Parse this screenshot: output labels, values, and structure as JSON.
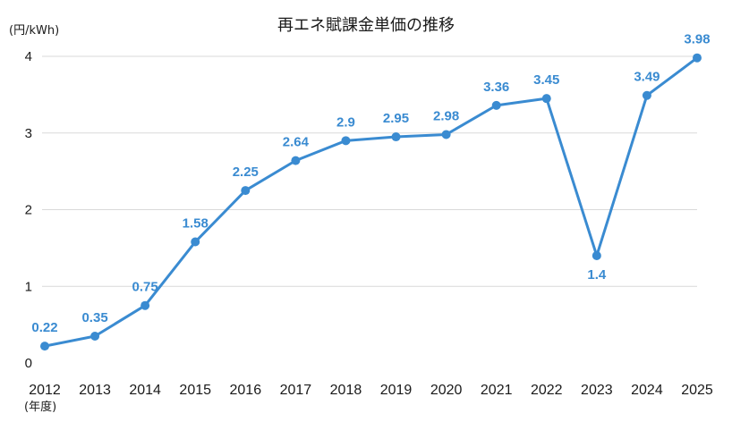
{
  "chart_data": {
    "type": "line",
    "title": "再エネ賦課金単価の推移",
    "ylabel": "(円/kWh)",
    "xlabel": "(年度)",
    "ylim": [
      0,
      4
    ],
    "yticks": [
      0,
      1,
      2,
      3,
      4
    ],
    "grid": true,
    "categories": [
      "2012",
      "2013",
      "2014",
      "2015",
      "2016",
      "2017",
      "2018",
      "2019",
      "2020",
      "2021",
      "2022",
      "2023",
      "2024",
      "2025"
    ],
    "series": [
      {
        "values": [
          0.22,
          0.35,
          0.75,
          1.58,
          2.25,
          2.64,
          2.9,
          2.95,
          2.98,
          3.36,
          3.45,
          1.4,
          3.49,
          3.98
        ],
        "labels": [
          "0.22",
          "0.35",
          "0.75",
          "1.58",
          "2.25",
          "2.64",
          "2.9",
          "2.95",
          "2.98",
          "3.36",
          "3.45",
          "1.4",
          "3.49",
          "3.98"
        ],
        "color": "#3a8bd1"
      }
    ]
  }
}
